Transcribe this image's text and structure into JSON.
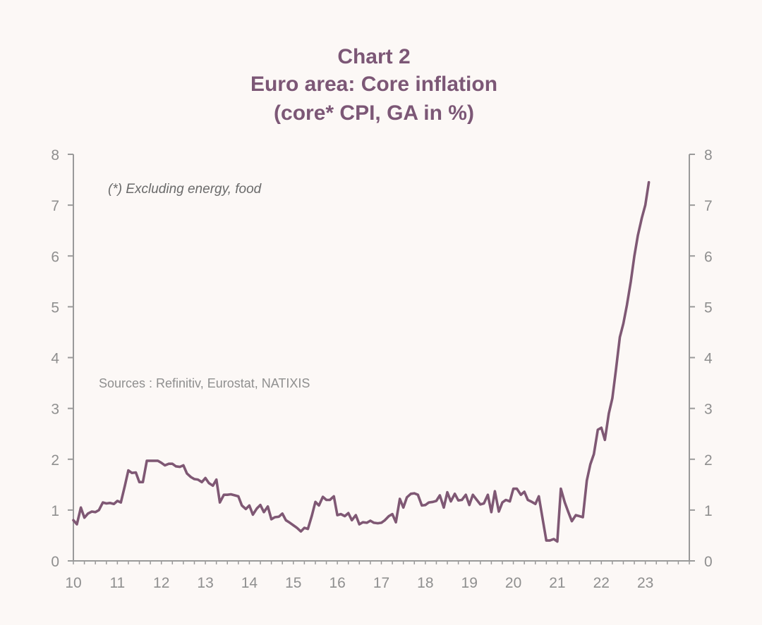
{
  "chart_data": {
    "type": "line",
    "title_lines": [
      "Chart 2",
      "Euro area: Core inflation",
      "(core* CPI, GA in %)"
    ],
    "note": "(*) Excluding energy, food",
    "source": "Sources : Refinitiv, Eurostat, NATIXIS",
    "xlim": [
      2010,
      2024
    ],
    "ylim": [
      0,
      8
    ],
    "x_tick_values": [
      2010,
      2011,
      2012,
      2013,
      2014,
      2015,
      2016,
      2017,
      2018,
      2019,
      2020,
      2021,
      2022,
      2023
    ],
    "x_tick_labels": [
      "10",
      "11",
      "12",
      "13",
      "14",
      "15",
      "16",
      "17",
      "18",
      "19",
      "20",
      "21",
      "22",
      "23"
    ],
    "y_ticks": [
      0,
      1,
      2,
      3,
      4,
      5,
      6,
      7,
      8
    ],
    "y_tick_labels": [
      "0",
      "1",
      "2",
      "3",
      "4",
      "5",
      "6",
      "7",
      "8"
    ],
    "axes": "left-and-right",
    "grid": false,
    "colors": {
      "line": "#7f5874",
      "title": "#7c5776",
      "axis": "#9a9a9a",
      "ticks": "#8f8f8f",
      "background": "#fcf8f6"
    },
    "series": [
      {
        "x": [
          2010.0,
          2010.08,
          2010.17,
          2010.25,
          2010.33,
          2010.42,
          2010.5,
          2010.58,
          2010.67,
          2010.75,
          2010.83,
          2010.92,
          2011.0,
          2011.08,
          2011.17,
          2011.25,
          2011.33,
          2011.42,
          2011.5,
          2011.58,
          2011.67,
          2011.75,
          2011.83,
          2011.92,
          2012.0,
          2012.08,
          2012.17,
          2012.25,
          2012.33,
          2012.42,
          2012.5,
          2012.58,
          2012.67,
          2012.75,
          2012.83,
          2012.92,
          2013.0,
          2013.08,
          2013.17,
          2013.25,
          2013.33,
          2013.42,
          2013.5,
          2013.58,
          2013.67,
          2013.75,
          2013.83,
          2013.92,
          2014.0,
          2014.08,
          2014.17,
          2014.25,
          2014.33,
          2014.42,
          2014.5,
          2014.58,
          2014.67,
          2014.75,
          2014.83,
          2014.92,
          2015.0,
          2015.08,
          2015.17,
          2015.25,
          2015.33,
          2015.42,
          2015.5,
          2015.58,
          2015.67,
          2015.75,
          2015.83,
          2015.92,
          2016.0,
          2016.08,
          2016.17,
          2016.25,
          2016.33,
          2016.42,
          2016.5,
          2016.58,
          2016.67,
          2016.75,
          2016.83,
          2016.92,
          2017.0,
          2017.08,
          2017.17,
          2017.25,
          2017.33,
          2017.42,
          2017.5,
          2017.58,
          2017.67,
          2017.75,
          2017.83,
          2017.92,
          2018.0,
          2018.08,
          2018.17,
          2018.25,
          2018.33,
          2018.42,
          2018.5,
          2018.58,
          2018.67,
          2018.75,
          2018.83,
          2018.92,
          2019.0,
          2019.08,
          2019.17,
          2019.25,
          2019.33,
          2019.42,
          2019.5,
          2019.58,
          2019.67,
          2019.75,
          2019.83,
          2019.92,
          2020.0,
          2020.08,
          2020.17,
          2020.25,
          2020.33,
          2020.42,
          2020.5,
          2020.58,
          2020.67,
          2020.75,
          2020.83,
          2020.92,
          2021.0,
          2021.08,
          2021.17,
          2021.25,
          2021.33,
          2021.42,
          2021.5,
          2021.58,
          2021.67,
          2021.75,
          2021.83,
          2021.92,
          2022.0,
          2022.08,
          2022.17,
          2022.25,
          2022.33,
          2022.42,
          2022.5,
          2022.58,
          2022.67,
          2022.75,
          2022.83,
          2022.92,
          2023.0,
          2023.08
        ],
        "y": [
          0.8,
          0.72,
          1.05,
          0.85,
          0.93,
          0.97,
          0.96,
          1.0,
          1.15,
          1.13,
          1.14,
          1.12,
          1.18,
          1.15,
          1.48,
          1.78,
          1.73,
          1.74,
          1.55,
          1.55,
          1.97,
          1.97,
          1.97,
          1.97,
          1.93,
          1.88,
          1.91,
          1.91,
          1.86,
          1.85,
          1.88,
          1.72,
          1.65,
          1.61,
          1.6,
          1.55,
          1.63,
          1.53,
          1.48,
          1.6,
          1.15,
          1.3,
          1.3,
          1.31,
          1.29,
          1.27,
          1.09,
          1.02,
          1.09,
          0.91,
          1.03,
          1.1,
          0.96,
          1.07,
          0.82,
          0.86,
          0.87,
          0.93,
          0.8,
          0.75,
          0.7,
          0.65,
          0.58,
          0.65,
          0.63,
          0.89,
          1.16,
          1.09,
          1.26,
          1.2,
          1.2,
          1.27,
          0.9,
          0.92,
          0.88,
          0.94,
          0.8,
          0.9,
          0.72,
          0.76,
          0.75,
          0.79,
          0.75,
          0.74,
          0.75,
          0.8,
          0.88,
          0.92,
          0.76,
          1.22,
          1.05,
          1.25,
          1.32,
          1.33,
          1.3,
          1.09,
          1.1,
          1.15,
          1.16,
          1.18,
          1.29,
          1.05,
          1.35,
          1.17,
          1.32,
          1.19,
          1.2,
          1.3,
          1.1,
          1.3,
          1.2,
          1.11,
          1.13,
          1.3,
          0.96,
          1.37,
          0.97,
          1.15,
          1.2,
          1.17,
          1.42,
          1.42,
          1.3,
          1.36,
          1.2,
          1.16,
          1.12,
          1.27,
          0.8,
          0.4,
          0.4,
          0.43,
          0.38,
          1.42,
          1.15,
          0.96,
          0.78,
          0.9,
          0.88,
          0.86,
          1.58,
          1.9,
          2.1,
          2.58,
          2.62,
          2.38,
          2.9,
          3.2,
          3.75,
          4.4,
          4.67,
          5.03,
          5.5,
          6.0,
          6.4,
          6.75,
          7.0,
          7.45
        ]
      }
    ]
  }
}
